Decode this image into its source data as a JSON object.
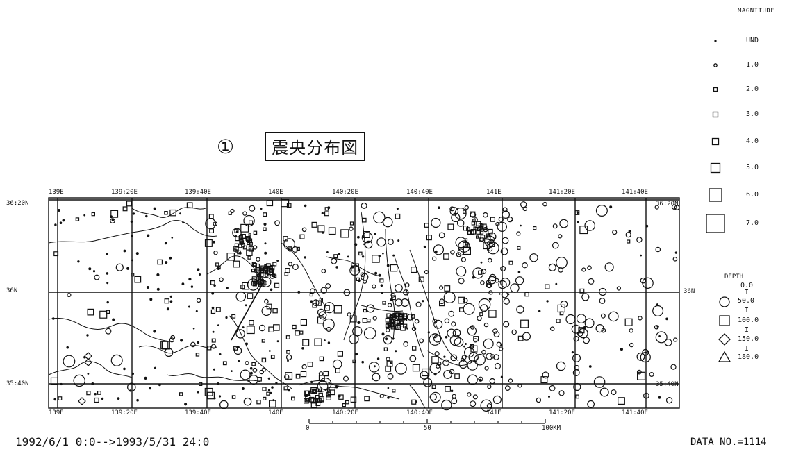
{
  "title": {
    "number_mark": "①",
    "text": "震央分布図"
  },
  "map": {
    "lon_ticks_top": [
      "139E",
      "139:20E",
      "139:40E",
      "140E",
      "140:20E",
      "140:40E",
      "141E",
      "141:20E",
      "141:40E"
    ],
    "lon_ticks_bottom": [
      "139E",
      "139:20E",
      "139:40E",
      "140E",
      "140:20E",
      "140:40E",
      "141E",
      "141:20E",
      "141:40E"
    ],
    "lat_ticks_left": [
      "36:20N",
      "36N",
      "35:40N"
    ],
    "lat_ticks_right": [
      "36:20N",
      "36N",
      "35:40N"
    ],
    "scale_bar": {
      "labels": [
        "0",
        "50",
        "100KM"
      ]
    }
  },
  "legend": {
    "magnitude_title": "MAGNITUDE",
    "magnitude_items": [
      "UND",
      "1.0",
      "2.0",
      "3.0",
      "4.0",
      "5.0",
      "6.0",
      "7.0"
    ],
    "depth_title": "DEPTH",
    "depth_items": [
      {
        "symbol": "circle-icon",
        "range": [
          "0.0",
          "50.0"
        ]
      },
      {
        "symbol": "square-icon",
        "range": [
          "50.0",
          "100.0"
        ]
      },
      {
        "symbol": "diamond-icon",
        "range": [
          "100.0",
          "150.0"
        ]
      },
      {
        "symbol": "triangle-icon",
        "range": [
          "150.0",
          "180.0"
        ]
      }
    ],
    "depth_separator": "I"
  },
  "footer": {
    "period": "1992/6/1 0:0-->1993/5/31 24:0",
    "data_count": "DATA NO.=1114"
  }
}
